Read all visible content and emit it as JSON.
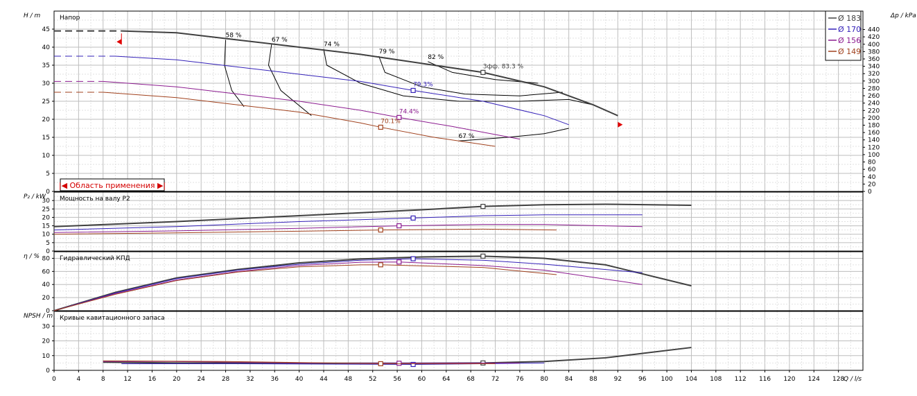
{
  "chart_data": {
    "type": "line",
    "x_axis": {
      "label": "Q / l/s",
      "range": [
        0,
        132
      ],
      "ticks": [
        0,
        4,
        8,
        12,
        16,
        20,
        24,
        28,
        32,
        36,
        40,
        44,
        48,
        52,
        56,
        60,
        64,
        68,
        72,
        76,
        80,
        84,
        88,
        92,
        96,
        100,
        104,
        108,
        112,
        116,
        120,
        124,
        128
      ]
    },
    "colors": {
      "d183": "#404040",
      "d170": "#3320b8",
      "d156": "#8b1a8f",
      "d149": "#a0401c"
    },
    "legend": {
      "placement": "top-right",
      "entries": [
        {
          "key": "d183",
          "label": "Ø 183"
        },
        {
          "key": "d170",
          "label": "Ø 170"
        },
        {
          "key": "d156",
          "label": "Ø 156"
        },
        {
          "key": "d149",
          "label": "Ø 149"
        }
      ]
    },
    "application_range_label": "|◀ Область применения ▶|",
    "panels": [
      {
        "id": "head",
        "title": "Напор",
        "ylabel": "H / m",
        "ylim": [
          0,
          50
        ],
        "yticks": [
          0,
          5,
          10,
          15,
          20,
          25,
          30,
          35,
          40,
          45
        ],
        "right_axis": {
          "label": "Δp / kPa",
          "range": [
            0,
            490
          ],
          "ticks": [
            0,
            20,
            40,
            60,
            80,
            100,
            120,
            140,
            160,
            180,
            200,
            220,
            240,
            260,
            280,
            300,
            320,
            340,
            360,
            380,
            400,
            420,
            440
          ]
        },
        "series": [
          {
            "key": "d183",
            "extrapolated": [
              [
                0,
                44.5
              ],
              [
                11,
                44.5
              ]
            ],
            "points": [
              [
                11,
                44.5
              ],
              [
                20,
                44
              ],
              [
                30,
                42
              ],
              [
                40,
                40
              ],
              [
                50,
                38
              ],
              [
                60,
                35.5
              ],
              [
                70,
                33
              ],
              [
                80,
                29
              ],
              [
                88,
                24
              ],
              [
                92,
                21
              ]
            ],
            "duty": {
              "x": 70,
              "y": 33,
              "label": "3фф.  83.3 %"
            }
          },
          {
            "key": "d170",
            "extrapolated": [
              [
                0,
                37.5
              ],
              [
                10,
                37.5
              ]
            ],
            "points": [
              [
                10,
                37.5
              ],
              [
                20,
                36.5
              ],
              [
                30,
                34.5
              ],
              [
                40,
                32.5
              ],
              [
                50,
                30.5
              ],
              [
                58.6,
                28
              ],
              [
                70,
                25
              ],
              [
                80,
                21
              ],
              [
                84,
                18.5
              ]
            ],
            "duty": {
              "x": 58.6,
              "y": 28,
              "label": "79.3%"
            }
          },
          {
            "key": "d156",
            "extrapolated": [
              [
                0,
                30.5
              ],
              [
                8,
                30.5
              ]
            ],
            "points": [
              [
                8,
                30.5
              ],
              [
                20,
                29
              ],
              [
                30,
                27
              ],
              [
                40,
                25
              ],
              [
                50,
                22.5
              ],
              [
                56.3,
                20.5
              ],
              [
                65,
                18
              ],
              [
                76,
                14.5
              ]
            ],
            "duty": {
              "x": 56.3,
              "y": 20.5,
              "label": "74.4%"
            }
          },
          {
            "key": "d149",
            "extrapolated": [
              [
                0,
                27.5
              ],
              [
                8,
                27.5
              ]
            ],
            "points": [
              [
                8,
                27.5
              ],
              [
                20,
                26
              ],
              [
                30,
                24
              ],
              [
                40,
                22
              ],
              [
                50,
                19
              ],
              [
                53.3,
                17.8
              ],
              [
                62,
                15
              ],
              [
                72,
                12.5
              ]
            ],
            "duty": {
              "x": 53.3,
              "y": 17.8,
              "label": "70.1%"
            }
          }
        ],
        "efficiency_contours": [
          {
            "label": "58 %",
            "points": [
              [
                28,
                42
              ],
              [
                27.8,
                35
              ],
              [
                29,
                28
              ],
              [
                31,
                23.5
              ]
            ]
          },
          {
            "label": "67 %",
            "points": [
              [
                35.5,
                40.8
              ],
              [
                35,
                35
              ],
              [
                37,
                28
              ],
              [
                42,
                21
              ]
            ]
          },
          {
            "label": "74 %",
            "points": [
              [
                44,
                39.5
              ],
              [
                44.5,
                35
              ],
              [
                50,
                30
              ],
              [
                57,
                26.5
              ],
              [
                66,
                25
              ],
              [
                76,
                25
              ],
              [
                84,
                25.5
              ],
              [
                88,
                24
              ]
            ]
          },
          {
            "label": "79 %",
            "points": [
              [
                53,
                37.5
              ],
              [
                54,
                33
              ],
              [
                60,
                29
              ],
              [
                67,
                27
              ],
              [
                76,
                26.5
              ],
              [
                83,
                27.5
              ]
            ]
          },
          {
            "label": "82 %",
            "points": [
              [
                61,
                36
              ],
              [
                65,
                33
              ],
              [
                72,
                31
              ],
              [
                79,
                30
              ]
            ]
          },
          {
            "label": "67 %",
            "points": [
              [
                66,
                14
              ],
              [
                74,
                15
              ],
              [
                80,
                16
              ],
              [
                84,
                17.5
              ]
            ]
          }
        ],
        "range_markers": [
          [
            11,
            41.5
          ],
          [
            92,
            18.5
          ]
        ]
      },
      {
        "id": "power",
        "title": "Мощность на валу P2",
        "ylabel": "P₂ / kW",
        "ylim": [
          0,
          35
        ],
        "yticks": [
          0,
          5,
          10,
          15,
          20,
          25,
          30
        ],
        "series": [
          {
            "key": "d183",
            "points": [
              [
                0,
                14.5
              ],
              [
                20,
                17.5
              ],
              [
                40,
                21
              ],
              [
                60,
                24.5
              ],
              [
                70,
                26.5
              ],
              [
                80,
                27.5
              ],
              [
                90,
                27.8
              ],
              [
                104,
                27.2
              ]
            ],
            "duty": {
              "x": 70,
              "y": 26.5
            }
          },
          {
            "key": "d170",
            "points": [
              [
                0,
                12.5
              ],
              [
                20,
                14.5
              ],
              [
                40,
                17.5
              ],
              [
                58.6,
                19.6
              ],
              [
                70,
                21
              ],
              [
                80,
                21.5
              ],
              [
                96,
                21.5
              ]
            ],
            "duty": {
              "x": 58.6,
              "y": 19.6
            }
          },
          {
            "key": "d156",
            "points": [
              [
                0,
                11
              ],
              [
                20,
                12
              ],
              [
                40,
                13.5
              ],
              [
                56.3,
                15
              ],
              [
                70,
                15.8
              ],
              [
                80,
                15.8
              ],
              [
                96,
                14.5
              ]
            ],
            "duty": {
              "x": 56.3,
              "y": 15
            }
          },
          {
            "key": "d149",
            "points": [
              [
                0,
                10
              ],
              [
                20,
                10.8
              ],
              [
                40,
                11.8
              ],
              [
                53.3,
                12.5
              ],
              [
                70,
                13
              ],
              [
                82,
                12.5
              ]
            ],
            "duty": {
              "x": 53.3,
              "y": 12.5
            }
          }
        ]
      },
      {
        "id": "efficiency",
        "title": "Гидравлический КПД",
        "ylabel": "η / %",
        "ylim": [
          0,
          90
        ],
        "yticks": [
          0,
          20,
          40,
          60,
          80
        ],
        "series": [
          {
            "key": "d183",
            "points": [
              [
                0,
                0
              ],
              [
                10,
                28
              ],
              [
                20,
                50
              ],
              [
                30,
                63
              ],
              [
                40,
                73
              ],
              [
                50,
                79
              ],
              [
                60,
                82
              ],
              [
                70,
                83.3
              ],
              [
                80,
                80
              ],
              [
                90,
                70
              ],
              [
                104,
                38
              ]
            ],
            "duty": {
              "x": 70,
              "y": 83.3
            }
          },
          {
            "key": "d170",
            "points": [
              [
                0,
                0
              ],
              [
                10,
                27
              ],
              [
                20,
                49
              ],
              [
                30,
                62
              ],
              [
                40,
                71
              ],
              [
                50,
                77
              ],
              [
                58.6,
                79.3
              ],
              [
                70,
                77
              ],
              [
                80,
                71
              ],
              [
                96,
                58
              ]
            ],
            "duty": {
              "x": 58.6,
              "y": 79.3
            }
          },
          {
            "key": "d156",
            "points": [
              [
                0,
                0
              ],
              [
                10,
                26
              ],
              [
                20,
                47
              ],
              [
                30,
                60
              ],
              [
                40,
                69
              ],
              [
                50,
                74
              ],
              [
                56.3,
                74.4
              ],
              [
                70,
                69
              ],
              [
                80,
                62
              ],
              [
                96,
                40
              ]
            ],
            "duty": {
              "x": 56.3,
              "y": 74.4
            }
          },
          {
            "key": "d149",
            "points": [
              [
                0,
                0
              ],
              [
                10,
                25
              ],
              [
                20,
                46
              ],
              [
                30,
                59
              ],
              [
                40,
                67
              ],
              [
                50,
                70
              ],
              [
                53.3,
                70.1
              ],
              [
                70,
                66
              ],
              [
                82,
                55
              ]
            ],
            "duty": {
              "x": 53.3,
              "y": 70.1
            }
          }
        ]
      },
      {
        "id": "npsh",
        "title": "Кривые кавитационного запаса",
        "ylabel": "NPSH / m",
        "ylim": [
          0,
          40
        ],
        "yticks": [
          0,
          10,
          20,
          30
        ],
        "series": [
          {
            "key": "d183",
            "points": [
              [
                8,
                5.5
              ],
              [
                20,
                5
              ],
              [
                40,
                4.8
              ],
              [
                60,
                4.8
              ],
              [
                70,
                5
              ],
              [
                80,
                6
              ],
              [
                90,
                8.5
              ],
              [
                104,
                15.5
              ]
            ],
            "duty": {
              "x": 70,
              "y": 5
            }
          },
          {
            "key": "d170",
            "points": [
              [
                11,
                4.5
              ],
              [
                30,
                4.5
              ],
              [
                58.6,
                4
              ],
              [
                70,
                4.5
              ],
              [
                80,
                5
              ]
            ],
            "duty": {
              "x": 58.6,
              "y": 4
            }
          },
          {
            "key": "d156",
            "points": [
              [
                8,
                6
              ],
              [
                19,
                6
              ],
              [
                40,
                5
              ],
              [
                56.3,
                4.8
              ],
              [
                70,
                5
              ],
              [
                76,
                5
              ]
            ],
            "duty": {
              "x": 56.3,
              "y": 4.8
            }
          },
          {
            "key": "d149",
            "points": [
              [
                8,
                6.5
              ],
              [
                28,
                6
              ],
              [
                53.3,
                4.5
              ],
              [
                70,
                4.5
              ],
              [
                72,
                4.5
              ]
            ],
            "duty": {
              "x": 53.3,
              "y": 4.5
            }
          }
        ]
      }
    ]
  }
}
